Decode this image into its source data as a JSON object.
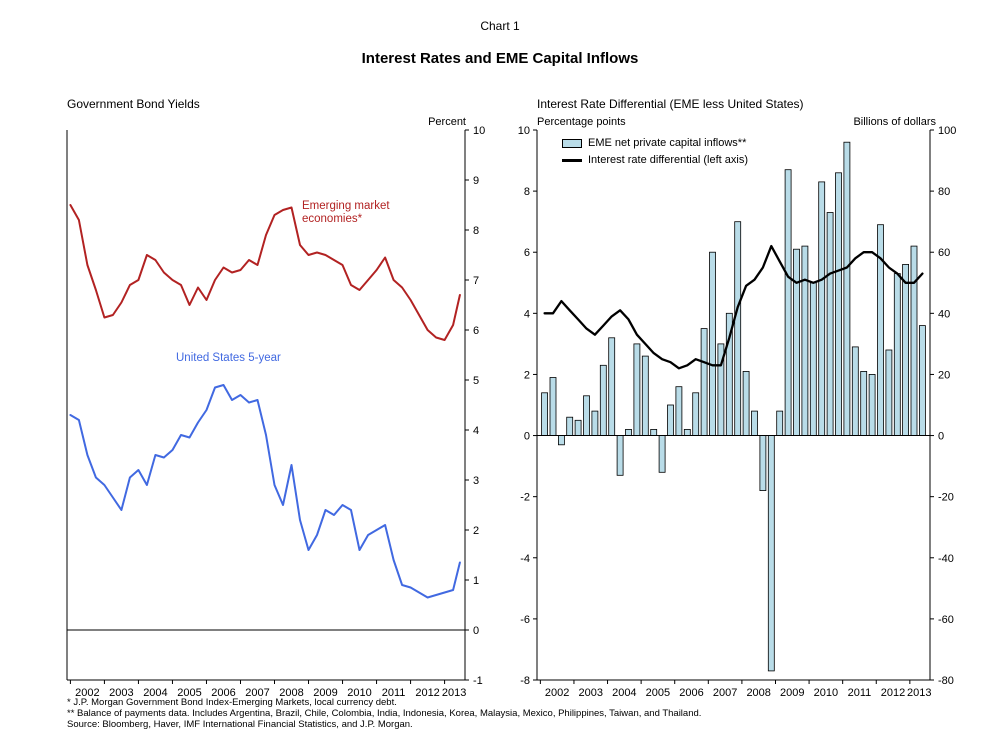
{
  "header": {
    "chart_label": "Chart 1",
    "title": "Interest Rates and EME Capital Inflows"
  },
  "chart_data": [
    {
      "type": "line",
      "title": "Government Bond Yields",
      "ylabel": "Percent",
      "ylim": [
        -1,
        10
      ],
      "yticks": [
        10,
        9,
        8,
        7,
        6,
        5,
        4,
        3,
        2,
        1,
        0,
        -1
      ],
      "xlim": [
        2001.9,
        2013.6
      ],
      "xticks": [
        2002,
        2003,
        2004,
        2005,
        2006,
        2007,
        2008,
        2009,
        2010,
        2011,
        2012,
        2013
      ],
      "grid": false,
      "x": [
        2002,
        2002.25,
        2002.5,
        2002.75,
        2003,
        2003.25,
        2003.5,
        2003.75,
        2004,
        2004.25,
        2004.5,
        2004.75,
        2005,
        2005.25,
        2005.5,
        2005.75,
        2006,
        2006.25,
        2006.5,
        2006.75,
        2007,
        2007.25,
        2007.5,
        2007.75,
        2008,
        2008.25,
        2008.5,
        2008.75,
        2009,
        2009.25,
        2009.5,
        2009.75,
        2010,
        2010.25,
        2010.5,
        2010.75,
        2011,
        2011.25,
        2011.5,
        2011.75,
        2012,
        2012.25,
        2012.5,
        2012.75,
        2013,
        2013.25,
        2013.45
      ],
      "series": [
        {
          "name": "Emerging market economies*",
          "color": "#b22222",
          "values": [
            8.5,
            8.2,
            7.3,
            6.8,
            6.25,
            6.3,
            6.55,
            6.9,
            7.0,
            7.5,
            7.4,
            7.15,
            7.0,
            6.9,
            6.5,
            6.85,
            6.6,
            7.0,
            7.25,
            7.15,
            7.2,
            7.4,
            7.3,
            7.9,
            8.3,
            8.4,
            8.45,
            7.7,
            7.5,
            7.55,
            7.5,
            7.4,
            7.3,
            6.9,
            6.8,
            7.0,
            7.2,
            7.45,
            7.0,
            6.85,
            6.6,
            6.3,
            6.0,
            5.85,
            5.8,
            6.1,
            6.7
          ]
        },
        {
          "name": "United States 5-year",
          "color": "#4169e1",
          "values": [
            4.3,
            4.2,
            3.5,
            3.05,
            2.9,
            2.65,
            2.4,
            3.05,
            3.2,
            2.9,
            3.5,
            3.45,
            3.6,
            3.9,
            3.85,
            4.15,
            4.4,
            4.85,
            4.9,
            4.6,
            4.7,
            4.55,
            4.6,
            3.9,
            2.9,
            2.5,
            3.3,
            2.2,
            1.6,
            1.9,
            2.4,
            2.3,
            2.5,
            2.4,
            1.6,
            1.9,
            2.0,
            2.1,
            1.4,
            0.9,
            0.85,
            0.75,
            0.65,
            0.7,
            0.75,
            0.8,
            1.35
          ]
        }
      ]
    },
    {
      "type": "bar+line",
      "title": "Interest Rate Differential (EME less United States)",
      "ylabel_left": "Percentage points",
      "ylabel_right": "Billions of dollars",
      "ylim_left": [
        -8,
        10
      ],
      "yticks_left": [
        10,
        8,
        6,
        4,
        2,
        0,
        -2,
        -4,
        -6,
        -8
      ],
      "ylim_right": [
        -80,
        100
      ],
      "yticks_right": [
        100,
        80,
        60,
        40,
        20,
        0,
        -20,
        -40,
        -60,
        -80
      ],
      "xlim": [
        2001.9,
        2013.6
      ],
      "xticks": [
        2002,
        2003,
        2004,
        2005,
        2006,
        2007,
        2008,
        2009,
        2010,
        2011,
        2012,
        2013
      ],
      "grid": false,
      "x_start": 2002.0,
      "x_step": 0.25,
      "bars": {
        "name": "EME net private capital inflows**",
        "axis": "right",
        "fill": "#b9dce8",
        "values": [
          14,
          19,
          -3,
          6,
          5,
          13,
          8,
          23,
          32,
          -13,
          2,
          30,
          26,
          2,
          -12,
          10,
          16,
          2,
          14,
          35,
          60,
          30,
          40,
          70,
          21,
          8,
          -18,
          -77,
          8,
          87,
          61,
          62,
          50,
          83,
          73,
          86,
          96,
          29,
          21,
          20,
          69,
          28,
          53,
          56,
          62,
          36
        ]
      },
      "line": {
        "name": "Interest rate differential (left axis)",
        "axis": "left",
        "color": "#000000",
        "values": [
          4.0,
          4.0,
          4.4,
          4.1,
          3.8,
          3.5,
          3.3,
          3.6,
          3.9,
          4.1,
          3.8,
          3.3,
          3.0,
          2.7,
          2.5,
          2.4,
          2.2,
          2.3,
          2.5,
          2.4,
          2.3,
          2.3,
          3.2,
          4.2,
          4.9,
          5.1,
          5.5,
          6.2,
          5.7,
          5.2,
          5.0,
          5.1,
          5.0,
          5.1,
          5.3,
          5.4,
          5.5,
          5.8,
          6.0,
          6.0,
          5.8,
          5.5,
          5.3,
          5.0,
          5.0,
          5.3
        ]
      }
    }
  ],
  "footnotes": [
    "* J.P. Morgan Government Bond Index-Emerging Markets, local currency debt.",
    "** Balance of payments data. Includes Argentina, Brazil, Chile, Colombia, India, Indonesia, Korea, Malaysia, Mexico, Philippines, Taiwan, and Thailand.",
    "Source: Bloomberg, Haver, IMF International Financial Statistics, and J.P. Morgan."
  ]
}
